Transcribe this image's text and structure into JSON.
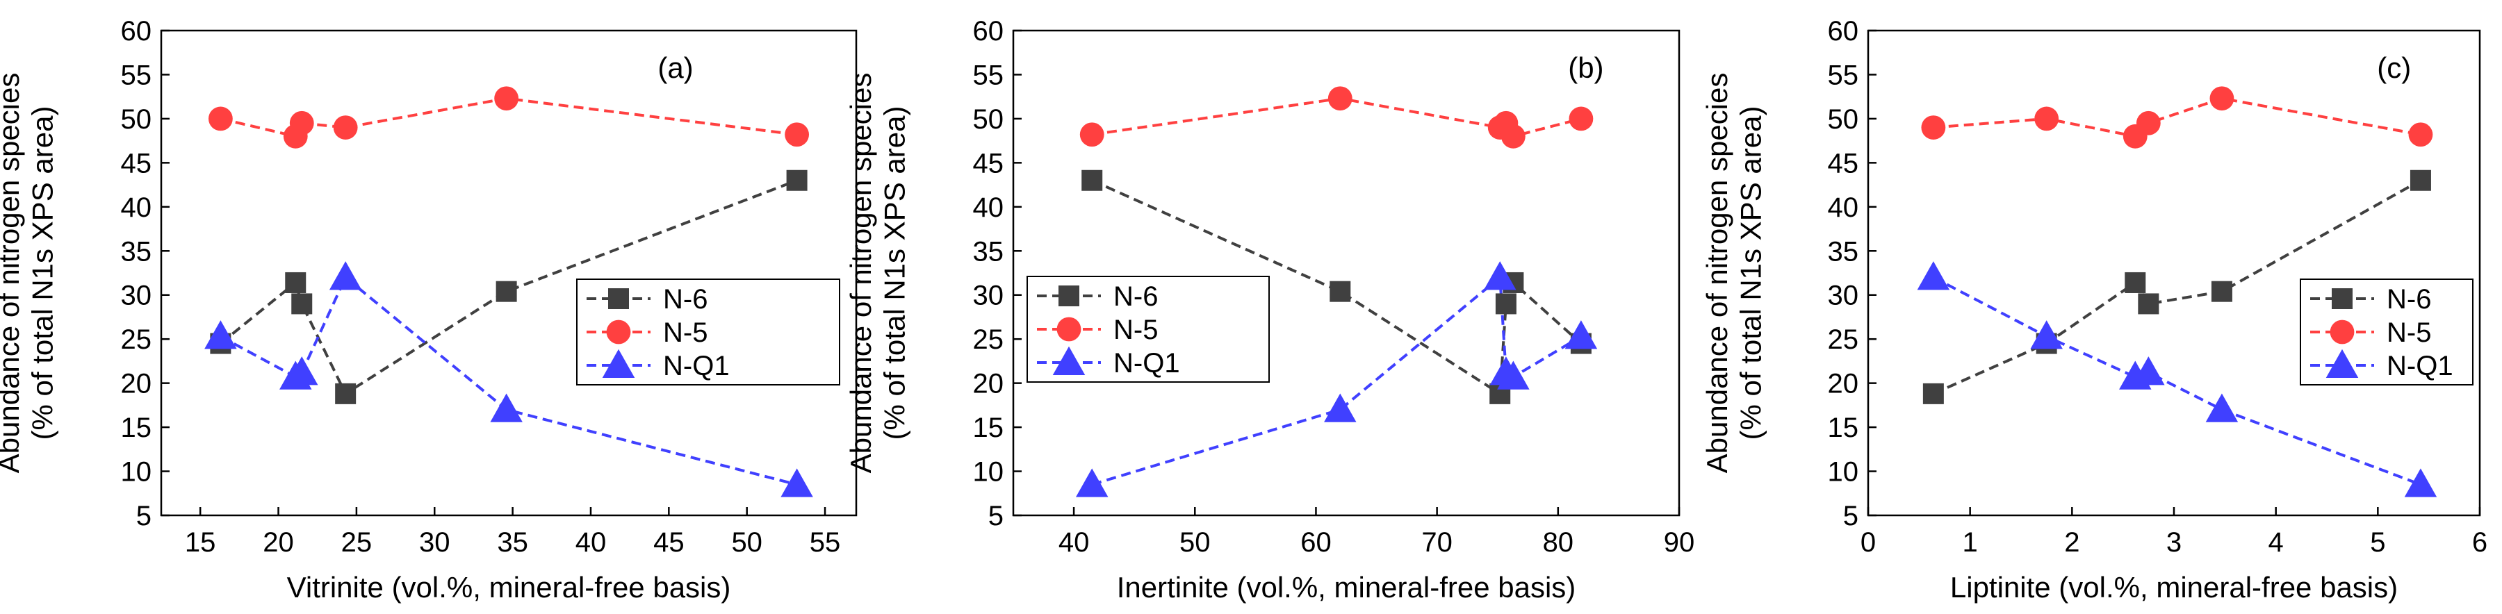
{
  "figure_ylabel": [
    "Abundance of nitrogen species",
    "(% of total N1s XPS area)"
  ],
  "chart_data": [
    {
      "type": "line",
      "panel_label": "(a)",
      "xlabel": "Vitrinite (vol.%, mineral-free basis)",
      "ylabel": "Abundance of nitrogen species (% of total N1s XPS area)",
      "xlim": [
        12.5,
        57
      ],
      "ylim": [
        5,
        60
      ],
      "xticks": [
        15,
        20,
        25,
        30,
        35,
        40,
        45,
        50,
        55
      ],
      "yticks": [
        5,
        10,
        15,
        20,
        25,
        30,
        35,
        40,
        45,
        50,
        55,
        60
      ],
      "legend": "right-middle",
      "series": [
        {
          "name": "N-6",
          "color": "#404040",
          "marker": "square",
          "x": [
            16.3,
            21.1,
            21.5,
            24.3,
            34.6,
            53.2
          ],
          "y": [
            24.5,
            31.4,
            29.0,
            18.8,
            30.4,
            43.0
          ]
        },
        {
          "name": "N-5",
          "color": "#ff4040",
          "marker": "circle",
          "x": [
            16.3,
            21.1,
            21.5,
            24.3,
            34.6,
            53.2
          ],
          "y": [
            50.0,
            48.0,
            49.5,
            49.0,
            52.3,
            48.2
          ]
        },
        {
          "name": "N-Q1",
          "color": "#4040ff",
          "marker": "triangle",
          "x": [
            16.3,
            21.1,
            21.5,
            24.3,
            34.6,
            53.2
          ],
          "y": [
            25.3,
            20.7,
            21.2,
            32.0,
            17.0,
            8.5
          ]
        }
      ]
    },
    {
      "type": "line",
      "panel_label": "(b)",
      "xlabel": "Inertinite (vol.%, mineral-free basis)",
      "ylabel": "Abundance of nitrogen species (% of total N1s XPS area)",
      "xlim": [
        35,
        90
      ],
      "ylim": [
        5,
        60
      ],
      "xticks": [
        40,
        50,
        60,
        70,
        80,
        90
      ],
      "yticks": [
        5,
        10,
        15,
        20,
        25,
        30,
        35,
        40,
        45,
        50,
        55,
        60
      ],
      "legend": "left-middle",
      "series": [
        {
          "name": "N-6",
          "color": "#404040",
          "marker": "square",
          "x": [
            41.5,
            62.0,
            75.2,
            75.7,
            76.3,
            81.9
          ],
          "y": [
            43.0,
            30.4,
            18.8,
            29.0,
            31.4,
            24.5
          ]
        },
        {
          "name": "N-5",
          "color": "#ff4040",
          "marker": "circle",
          "x": [
            41.5,
            62.0,
            75.2,
            75.7,
            76.3,
            81.9
          ],
          "y": [
            48.2,
            52.3,
            49.0,
            49.5,
            48.0,
            50.0
          ]
        },
        {
          "name": "N-Q1",
          "color": "#4040ff",
          "marker": "triangle",
          "x": [
            41.5,
            62.0,
            75.2,
            75.7,
            76.3,
            81.9
          ],
          "y": [
            8.5,
            17.0,
            32.0,
            21.2,
            20.7,
            25.3
          ]
        }
      ]
    },
    {
      "type": "line",
      "panel_label": "(c)",
      "xlabel": "Liptinite (vol.%, mineral-free basis)",
      "ylabel": "Abundance of nitrogen species (% of total N1s XPS area)",
      "xlim": [
        0,
        6
      ],
      "ylim": [
        5,
        60
      ],
      "xticks": [
        0,
        1,
        2,
        3,
        4,
        5,
        6
      ],
      "yticks": [
        5,
        10,
        15,
        20,
        25,
        30,
        35,
        40,
        45,
        50,
        55,
        60
      ],
      "legend": "right-middle",
      "series": [
        {
          "name": "N-6",
          "color": "#404040",
          "marker": "square",
          "x": [
            0.64,
            1.75,
            2.62,
            2.75,
            3.47,
            5.42
          ],
          "y": [
            18.8,
            24.5,
            31.4,
            29.0,
            30.4,
            43.0
          ]
        },
        {
          "name": "N-5",
          "color": "#ff4040",
          "marker": "circle",
          "x": [
            0.64,
            1.75,
            2.62,
            2.75,
            3.47,
            5.42
          ],
          "y": [
            49.0,
            50.0,
            48.0,
            49.5,
            52.3,
            48.2
          ]
        },
        {
          "name": "N-Q1",
          "color": "#4040ff",
          "marker": "triangle",
          "x": [
            0.64,
            1.75,
            2.62,
            2.75,
            3.47,
            5.42
          ],
          "y": [
            32.0,
            25.3,
            20.7,
            21.2,
            17.0,
            8.5
          ]
        }
      ]
    }
  ]
}
